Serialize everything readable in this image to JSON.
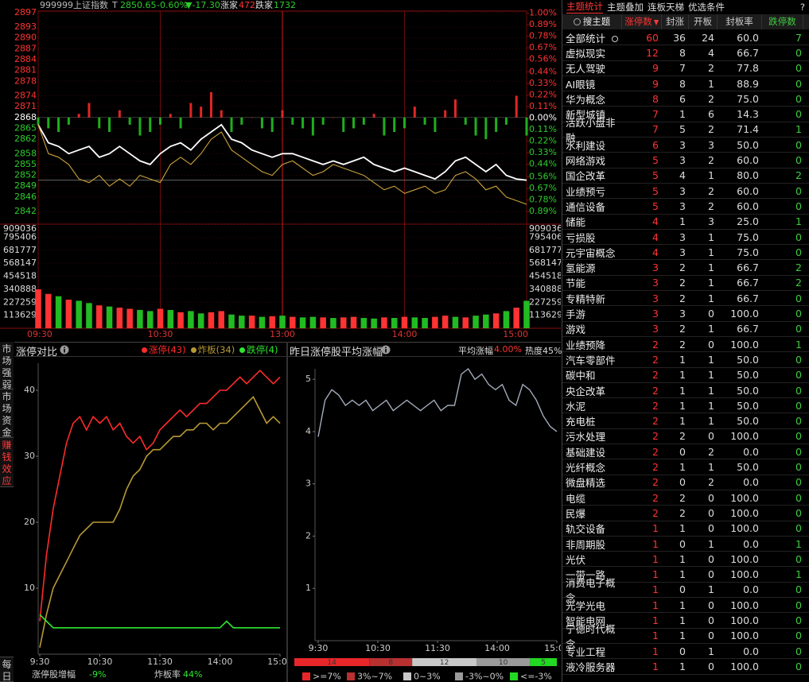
{
  "header": {
    "code": "999999",
    "name": "上证指数",
    "t": "T",
    "price": 2850.65,
    "change_pct": "-0.60%",
    "change": "▼-17.30",
    "up_label": "涨家",
    "up": "472",
    "down_label": "跌家",
    "down": "1732"
  },
  "intraday": {
    "type": "line",
    "prev_close": 2868,
    "ylim": [
      2838.5,
      2897.4
    ],
    "y2lim": [
      -1.01,
      1.02
    ],
    "xlim": [
      0,
      240
    ],
    "yticks": [
      2897,
      2893,
      2890,
      2887,
      2884,
      2881,
      2878,
      2874,
      2871,
      2868,
      2865,
      2862,
      2858,
      2855,
      2852,
      2849,
      2846,
      2842
    ],
    "y2ticks": [
      {
        "value": 1.0,
        "label": "1.00%"
      },
      {
        "value": 0.89,
        "label": "0.89%"
      },
      {
        "value": 0.78,
        "label": "0.78%"
      },
      {
        "value": 0.67,
        "label": "0.67%"
      },
      {
        "value": 0.56,
        "label": "0.56%"
      },
      {
        "value": 0.44,
        "label": "0.44%"
      },
      {
        "value": 0.33,
        "label": "0.33%"
      },
      {
        "value": 0.22,
        "label": "0.22%"
      },
      {
        "value": 0.11,
        "label": "0.11%"
      },
      {
        "value": 0,
        "label": "0.00%"
      },
      {
        "value": -0.11,
        "label": "0.11%"
      },
      {
        "value": -0.22,
        "label": "0.22%"
      },
      {
        "value": -0.33,
        "label": "0.33%"
      },
      {
        "value": -0.44,
        "label": "0.44%"
      },
      {
        "value": -0.56,
        "label": "0.56%"
      },
      {
        "value": -0.67,
        "label": "0.67%"
      },
      {
        "value": -0.78,
        "label": "0.78%"
      },
      {
        "value": -0.89,
        "label": "0.89%"
      }
    ],
    "xticks": [
      {
        "value": 0,
        "label": "09:30"
      },
      {
        "value": 60,
        "label": "10:30"
      },
      {
        "value": 120,
        "label": "13:00"
      },
      {
        "value": 180,
        "label": "14:00"
      },
      {
        "value": 240,
        "label": "15:00"
      }
    ],
    "series": [
      {
        "color": "#ffffff",
        "values": [
          2866,
          2861,
          2860,
          2858,
          2859,
          2860,
          2857,
          2858,
          2860,
          2858,
          2856,
          2855,
          2858,
          2860,
          2861,
          2859,
          2862,
          2864,
          2866,
          2862,
          2861,
          2859,
          2858,
          2857,
          2858,
          2858,
          2857,
          2856,
          2855,
          2856,
          2855,
          2856,
          2857,
          2855,
          2854,
          2853,
          2854,
          2853,
          2852,
          2851,
          2853,
          2856,
          2857,
          2855,
          2853,
          2855,
          2852,
          2851,
          2850.65
        ]
      },
      {
        "color": "#c9a23a",
        "values": [
          2866,
          2858,
          2857,
          2855,
          2851,
          2850,
          2852,
          2849,
          2851,
          2849,
          2852,
          2851,
          2850,
          2855,
          2857,
          2855,
          2858,
          2862,
          2864,
          2859,
          2857,
          2855,
          2853,
          2852,
          2855,
          2856,
          2854,
          2852,
          2853,
          2855,
          2854,
          2853,
          2852,
          2850,
          2848,
          2849,
          2847,
          2848,
          2849,
          2847,
          2848,
          2852,
          2853,
          2851,
          2848,
          2849,
          2846,
          2845,
          2844
        ]
      }
    ],
    "breadth": [
      2866,
      2865,
      2864,
      2866,
      2869,
      2872,
      2865,
      2864,
      2870,
      2866,
      2863,
      2864,
      2866,
      2869,
      2865,
      2872,
      2871,
      2875,
      2870,
      2864,
      2866,
      2868,
      2865,
      2864,
      2870,
      2866,
      2865,
      2863,
      2866,
      2868,
      2864,
      2865,
      2866,
      2869,
      2863,
      2864,
      2865,
      2871,
      2866,
      2864,
      2870,
      2873,
      2866,
      2863,
      2862,
      2864,
      2866,
      2874,
      2863
    ],
    "volume": {
      "ylim": [
        0,
        909036
      ],
      "yticks": [
        909036,
        795406,
        681777,
        568147,
        454518,
        340888,
        227259,
        113629
      ],
      "values": [
        340000,
        300000,
        280000,
        250000,
        240000,
        220000,
        200000,
        190000,
        180000,
        170000,
        160000,
        150000,
        170000,
        160000,
        140000,
        150000,
        130000,
        140000,
        150000,
        120000,
        110000,
        110000,
        100000,
        105000,
        110000,
        100000,
        95000,
        100000,
        95000,
        90000,
        95000,
        100000,
        90000,
        85000,
        95000,
        90000,
        100000,
        95000,
        90000,
        100000,
        110000,
        100000,
        95000,
        110000,
        120000,
        130000,
        150000,
        180000,
        240000
      ],
      "colors": [
        "#f33",
        "#f33",
        "#2b2",
        "#f33",
        "#2b2",
        "#2b2",
        "#f33",
        "#2b2",
        "#f33",
        "#f33",
        "#2b2",
        "#2b2",
        "#f33",
        "#2b2",
        "#f33",
        "#2b2",
        "#2b2",
        "#f33",
        "#f33",
        "#2b2",
        "#2b2",
        "#f33",
        "#2b2",
        "#f33",
        "#2b2",
        "#f33",
        "#2b2",
        "#2b2",
        "#f33",
        "#2b2",
        "#f33",
        "#f33",
        "#2b2",
        "#2b2",
        "#f33",
        "#2b2",
        "#f33",
        "#2b2",
        "#2b2",
        "#f33",
        "#f33",
        "#2b2",
        "#f33",
        "#2b2",
        "#2b2",
        "#f33",
        "#2b2",
        "#f33",
        "#2b2"
      ]
    }
  },
  "side_tabs": [
    "市场强弱",
    "市场资金",
    "赚钱效应"
  ],
  "daily_tab": "每日",
  "limit_compare": {
    "type": "line",
    "title": "涨停对比",
    "ylim": [
      0,
      44.1
    ],
    "yticks": [
      10,
      20,
      30,
      40
    ],
    "xlim": [
      0,
      240
    ],
    "xticks": [
      {
        "value": 0,
        "label": "9:30"
      },
      {
        "value": 60,
        "label": "10:30"
      },
      {
        "value": 120,
        "label": "11:30"
      },
      {
        "value": 180,
        "label": "14:00"
      },
      {
        "value": 240,
        "label": "15:00"
      }
    ],
    "series": [
      {
        "name": "涨停(43)",
        "color": "#ff2a2a",
        "values": [
          5,
          15,
          22,
          27,
          32,
          35,
          36,
          34,
          36,
          35,
          36,
          34,
          35,
          33,
          32,
          33,
          31,
          32,
          34,
          35,
          36,
          37,
          36,
          37,
          38,
          38,
          39,
          40,
          40,
          41,
          42,
          41,
          42,
          43,
          42,
          41,
          42
        ]
      },
      {
        "name": "炸板(34)",
        "color": "#b89a35",
        "values": [
          1,
          6,
          10,
          12,
          14,
          16,
          18,
          19,
          20,
          20,
          20,
          20,
          22,
          25,
          27,
          28,
          30,
          31,
          31,
          32,
          33,
          33,
          34,
          34,
          35,
          35,
          34,
          35,
          35,
          36,
          37,
          38,
          39,
          37,
          35,
          36,
          35
        ]
      },
      {
        "name": "跌停(4)",
        "color": "#2ee62e",
        "values": [
          6,
          5,
          4,
          4,
          4,
          4,
          4,
          4,
          4,
          4,
          4,
          4,
          4,
          4,
          4,
          4,
          4,
          4,
          4,
          4,
          4,
          4,
          4,
          4,
          4,
          4,
          4,
          4,
          5,
          4,
          4,
          4,
          4,
          4,
          4,
          4,
          4
        ]
      }
    ],
    "footer": [
      {
        "label": "涨停股增幅",
        "value": "-9%"
      },
      {
        "label": "炸板率",
        "value": "44%"
      }
    ]
  },
  "avg_gain": {
    "type": "line",
    "title": "昨日涨停股平均涨幅",
    "avg_label": "平均涨幅",
    "avg_value": "4.00%",
    "heat": "热度45%",
    "ylim": [
      0,
      5.2
    ],
    "yticks": [
      1,
      2,
      3,
      4,
      5
    ],
    "xlim": [
      0,
      240
    ],
    "xticks": [
      {
        "value": 0,
        "label": "9:30"
      },
      {
        "value": 60,
        "label": "10:30"
      },
      {
        "value": 120,
        "label": "11:30"
      },
      {
        "value": 180,
        "label": "14:00"
      },
      {
        "value": 240,
        "label": "15:00"
      }
    ],
    "series": [
      {
        "color": "#a3abbb",
        "values": [
          3.9,
          4.6,
          4.8,
          4.7,
          4.5,
          4.6,
          4.5,
          4.6,
          4.4,
          4.5,
          4.6,
          4.4,
          4.5,
          4.6,
          4.5,
          4.4,
          4.5,
          4.6,
          4.4,
          4.5,
          4.5,
          5.1,
          5.2,
          5.0,
          5.1,
          4.9,
          4.8,
          4.9,
          4.6,
          4.5,
          4.9,
          4.8,
          4.6,
          4.3,
          4.1,
          4.0
        ]
      }
    ],
    "distribution": [
      {
        "label": ">=7%",
        "color": "#e8262a",
        "value": 14
      },
      {
        "label": "3%~7%",
        "color": "#b83030",
        "value": 8
      },
      {
        "label": "0~3%",
        "color": "#c8c8c8",
        "value": 12
      },
      {
        "label": "-3%~0%",
        "color": "#9a9a9a",
        "value": 10
      },
      {
        "label": "<=-3%",
        "color": "#22d822",
        "value": 5
      }
    ]
  },
  "theme_panel": {
    "tabs": [
      "主题统计",
      "主题叠加",
      "连板天梯",
      "优选条件"
    ],
    "help": "?",
    "columns": [
      "搜主题",
      "涨停数",
      "封涨",
      "开板",
      "封板率",
      "跌停数"
    ],
    "rows": [
      [
        "全部统计",
        "60",
        "36",
        "24",
        "60.0",
        "7"
      ],
      [
        "虚拟现实",
        "12",
        "8",
        "4",
        "66.7",
        "0"
      ],
      [
        "无人驾驶",
        "9",
        "7",
        "2",
        "77.8",
        "0"
      ],
      [
        "AI眼镜",
        "9",
        "8",
        "1",
        "88.9",
        "0"
      ],
      [
        "华为概念",
        "8",
        "6",
        "2",
        "75.0",
        "0"
      ],
      [
        "新型城镇",
        "7",
        "1",
        "6",
        "14.3",
        "0"
      ],
      [
        "活跃小盘非融",
        "7",
        "5",
        "2",
        "71.4",
        "1"
      ],
      [
        "水利建设",
        "6",
        "3",
        "3",
        "50.0",
        "0"
      ],
      [
        "网络游戏",
        "5",
        "3",
        "2",
        "60.0",
        "0"
      ],
      [
        "国企改革",
        "5",
        "4",
        "1",
        "80.0",
        "2"
      ],
      [
        "业绩预亏",
        "5",
        "3",
        "2",
        "60.0",
        "0"
      ],
      [
        "通信设备",
        "5",
        "3",
        "2",
        "60.0",
        "0"
      ],
      [
        "储能",
        "4",
        "1",
        "3",
        "25.0",
        "1"
      ],
      [
        "亏损股",
        "4",
        "3",
        "1",
        "75.0",
        "0"
      ],
      [
        "元宇宙概念",
        "4",
        "3",
        "1",
        "75.0",
        "0"
      ],
      [
        "氢能源",
        "3",
        "2",
        "1",
        "66.7",
        "2"
      ],
      [
        "节能",
        "3",
        "2",
        "1",
        "66.7",
        "2"
      ],
      [
        "专精特新",
        "3",
        "2",
        "1",
        "66.7",
        "0"
      ],
      [
        "手游",
        "3",
        "3",
        "0",
        "100.0",
        "0"
      ],
      [
        "游戏",
        "3",
        "2",
        "1",
        "66.7",
        "0"
      ],
      [
        "业绩预降",
        "2",
        "2",
        "0",
        "100.0",
        "1"
      ],
      [
        "汽车零部件",
        "2",
        "1",
        "1",
        "50.0",
        "0"
      ],
      [
        "碳中和",
        "2",
        "1",
        "1",
        "50.0",
        "0"
      ],
      [
        "央企改革",
        "2",
        "1",
        "1",
        "50.0",
        "0"
      ],
      [
        "水泥",
        "2",
        "1",
        "1",
        "50.0",
        "0"
      ],
      [
        "充电桩",
        "2",
        "1",
        "1",
        "50.0",
        "0"
      ],
      [
        "污水处理",
        "2",
        "2",
        "0",
        "100.0",
        "0"
      ],
      [
        "基础建设",
        "2",
        "0",
        "2",
        "0.0",
        "0"
      ],
      [
        "光纤概念",
        "2",
        "1",
        "1",
        "50.0",
        "0"
      ],
      [
        "微盘精选",
        "2",
        "0",
        "2",
        "0.0",
        "0"
      ],
      [
        "电缆",
        "2",
        "2",
        "0",
        "100.0",
        "0"
      ],
      [
        "民爆",
        "2",
        "2",
        "0",
        "100.0",
        "0"
      ],
      [
        "轨交设备",
        "1",
        "1",
        "0",
        "100.0",
        "0"
      ],
      [
        "非周期股",
        "1",
        "0",
        "1",
        "0.0",
        "1"
      ],
      [
        "光伏",
        "1",
        "1",
        "0",
        "100.0",
        "0"
      ],
      [
        "一带一路",
        "1",
        "1",
        "0",
        "100.0",
        "1"
      ],
      [
        "消费电子概念",
        "1",
        "0",
        "1",
        "0.0",
        "0"
      ],
      [
        "光学光电",
        "1",
        "1",
        "0",
        "100.0",
        "0"
      ],
      [
        "智能电网",
        "1",
        "1",
        "0",
        "100.0",
        "0"
      ],
      [
        "宁德时代概念",
        "1",
        "1",
        "0",
        "100.0",
        "0"
      ],
      [
        "专业工程",
        "1",
        "0",
        "1",
        "0.0",
        "0"
      ],
      [
        "液冷服务器",
        "1",
        "1",
        "0",
        "100.0",
        "0"
      ]
    ]
  }
}
